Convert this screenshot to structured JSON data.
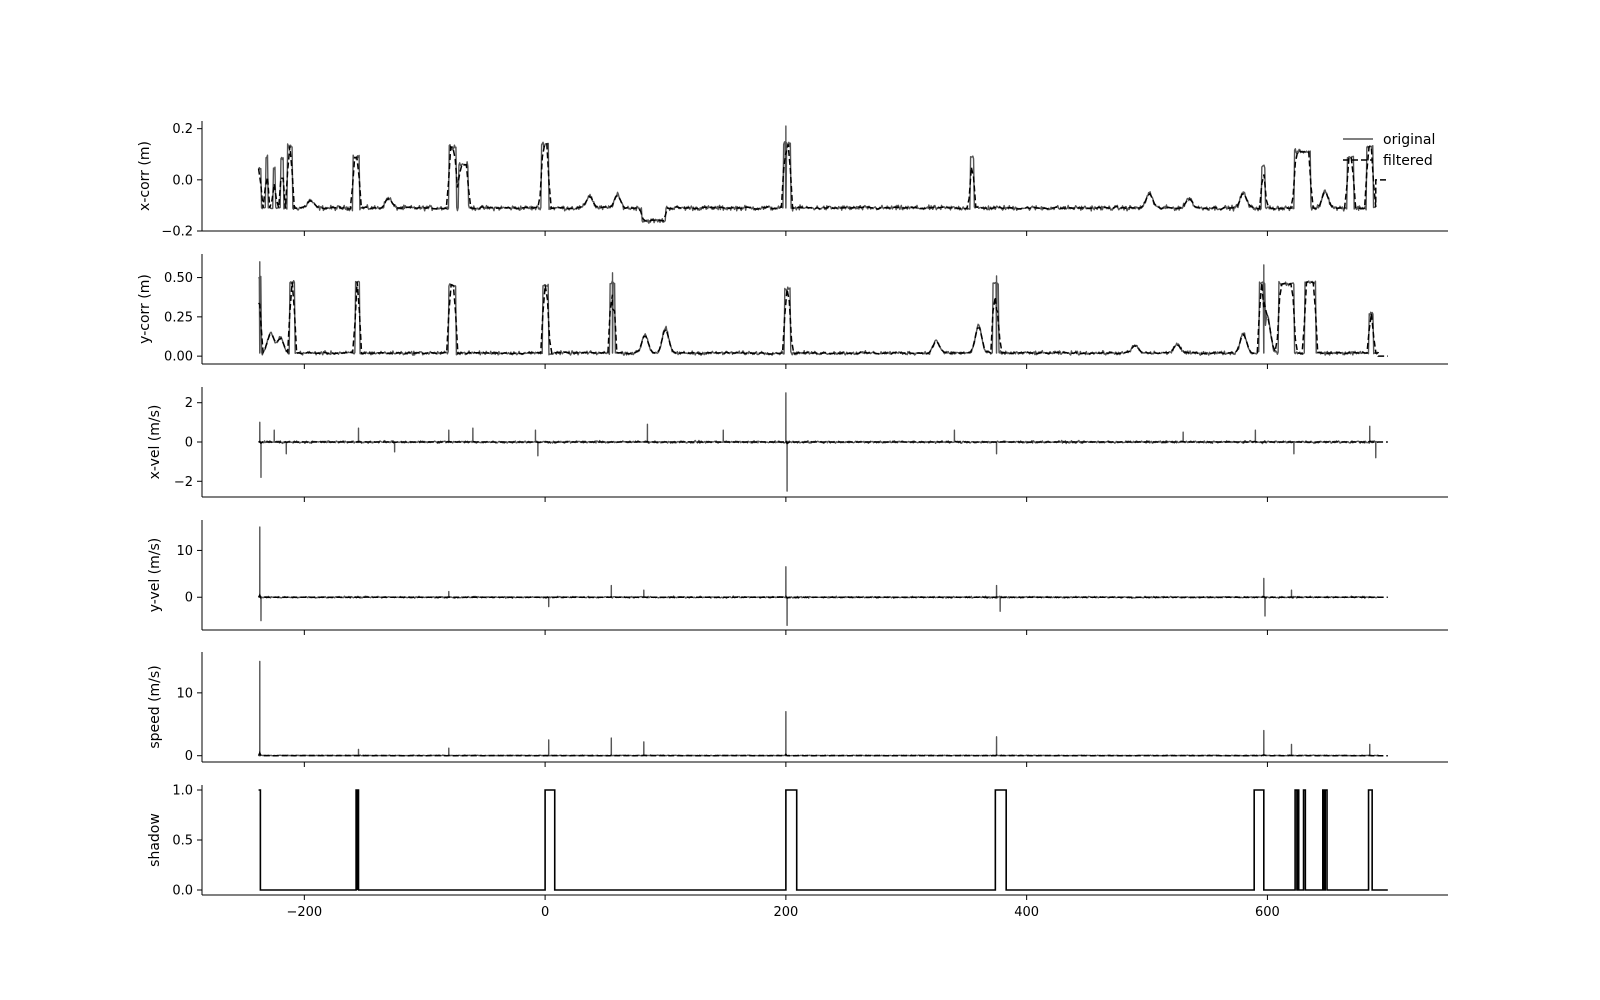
{
  "chart_data": {
    "type": "line",
    "layout": "stacked-subplots",
    "shared_x": true,
    "x_ticks": [
      -200,
      0,
      200,
      400,
      600
    ],
    "xlim": [
      -285,
      750
    ],
    "legend": {
      "placement": "top-right",
      "entries": [
        {
          "name": "original",
          "style": "solid",
          "color": "#555555"
        },
        {
          "name": "filtered",
          "style": "dashed",
          "color": "#000000"
        }
      ]
    },
    "x_range_data": [
      -238,
      700
    ],
    "panels": [
      {
        "ylabel": "x-corr (m)",
        "ylim": [
          -0.2,
          0.23
        ],
        "y_ticks": [
          -0.2,
          0.0,
          0.2
        ],
        "y_tick_labels": [
          "−0.2",
          "0.0",
          "0.2"
        ],
        "baseline": -0.11,
        "noise": 0.008,
        "tail": {
          "from": 690,
          "value": 0.0
        },
        "features": [
          {
            "x0": -238,
            "x1": -236,
            "v": 0.04
          },
          {
            "x0": -232,
            "x1": -230,
            "v": 0.09
          },
          {
            "x0": -226,
            "x1": -224,
            "v": 0.05
          },
          {
            "x0": -220,
            "x1": -217,
            "v": 0.08
          },
          {
            "x0": -214,
            "x1": -210,
            "v": 0.13
          },
          {
            "x0": -160,
            "x1": -154,
            "v": 0.09
          },
          {
            "x0": -80,
            "x1": -74,
            "v": 0.13
          },
          {
            "x0": -72,
            "x1": -64,
            "v": 0.06
          },
          {
            "x0": -3,
            "x1": 3,
            "v": 0.14
          },
          {
            "x0": 80,
            "x1": 100,
            "v": -0.16
          },
          {
            "x0": 198,
            "x1": 204,
            "v": 0.14
          },
          {
            "x0": 353,
            "x1": 356,
            "v": 0.09
          },
          {
            "x0": 595,
            "x1": 598,
            "v": 0.05
          },
          {
            "x0": 622,
            "x1": 636,
            "v": 0.11
          },
          {
            "x0": 666,
            "x1": 672,
            "v": 0.09
          },
          {
            "x0": 682,
            "x1": 688,
            "v": 0.13
          }
        ],
        "spikes": [
          {
            "x": 200,
            "v": 0.21
          }
        ],
        "bumps": [
          {
            "x": -195,
            "v": -0.08
          },
          {
            "x": -130,
            "v": -0.07
          },
          {
            "x": 37,
            "v": -0.06
          },
          {
            "x": 60,
            "v": -0.06
          },
          {
            "x": 502,
            "v": -0.05
          },
          {
            "x": 535,
            "v": -0.07
          },
          {
            "x": 580,
            "v": -0.05
          },
          {
            "x": 648,
            "v": -0.04
          }
        ]
      },
      {
        "ylabel": "y-corr (m)",
        "ylim": [
          -0.05,
          0.65
        ],
        "y_ticks": [
          0.0,
          0.25,
          0.5
        ],
        "y_tick_labels": [
          "0.00",
          "0.25",
          "0.50"
        ],
        "baseline": 0.02,
        "noise": 0.01,
        "tail": {
          "from": 692,
          "value": 0.0
        },
        "features": [
          {
            "x0": -238,
            "x1": -236,
            "v": 0.5
          },
          {
            "x0": -212,
            "x1": -208,
            "v": 0.47
          },
          {
            "x0": -158,
            "x1": -154,
            "v": 0.47
          },
          {
            "x0": -80,
            "x1": -74,
            "v": 0.45
          },
          {
            "x0": -2,
            "x1": 3,
            "v": 0.45
          },
          {
            "x0": 54,
            "x1": 58,
            "v": 0.47
          },
          {
            "x0": 199,
            "x1": 204,
            "v": 0.43
          },
          {
            "x0": 372,
            "x1": 377,
            "v": 0.46
          },
          {
            "x0": 593,
            "x1": 598,
            "v": 0.47
          },
          {
            "x0": 609,
            "x1": 622,
            "v": 0.46
          },
          {
            "x0": 631,
            "x1": 640,
            "v": 0.47
          },
          {
            "x0": 684,
            "x1": 688,
            "v": 0.27
          }
        ],
        "spikes": [
          {
            "x": -237,
            "v": 0.6
          },
          {
            "x": 56,
            "v": 0.53
          },
          {
            "x": 375,
            "v": 0.51
          },
          {
            "x": 597,
            "v": 0.58
          }
        ],
        "bumps": [
          {
            "x": -228,
            "v": 0.15
          },
          {
            "x": -220,
            "v": 0.12
          },
          {
            "x": 83,
            "v": 0.14
          },
          {
            "x": 100,
            "v": 0.18
          },
          {
            "x": 325,
            "v": 0.1
          },
          {
            "x": 360,
            "v": 0.2
          },
          {
            "x": 490,
            "v": 0.07
          },
          {
            "x": 525,
            "v": 0.08
          },
          {
            "x": 580,
            "v": 0.15
          },
          {
            "x": 600,
            "v": 0.25
          }
        ]
      },
      {
        "ylabel": "x-vel (m/s)",
        "ylim": [
          -2.8,
          2.8
        ],
        "y_ticks": [
          -2,
          0,
          2
        ],
        "y_tick_labels": [
          "−2",
          "0",
          "2"
        ],
        "baseline": 0.0,
        "noise": 0.05,
        "tail": {
          "from": 692,
          "value": 0.0
        },
        "features": [],
        "spikes": [
          {
            "x": -237,
            "v": 1.0
          },
          {
            "x": -236,
            "v": -1.8
          },
          {
            "x": -225,
            "v": 0.6
          },
          {
            "x": -215,
            "v": -0.6
          },
          {
            "x": -155,
            "v": 0.7
          },
          {
            "x": -125,
            "v": -0.5
          },
          {
            "x": -80,
            "v": 0.6
          },
          {
            "x": -60,
            "v": 0.7
          },
          {
            "x": -8,
            "v": 0.6
          },
          {
            "x": -6,
            "v": -0.7
          },
          {
            "x": 85,
            "v": 0.9
          },
          {
            "x": 148,
            "v": 0.6
          },
          {
            "x": 200,
            "v": 2.5
          },
          {
            "x": 201,
            "v": -2.5
          },
          {
            "x": 340,
            "v": 0.6
          },
          {
            "x": 375,
            "v": -0.6
          },
          {
            "x": 530,
            "v": 0.5
          },
          {
            "x": 590,
            "v": 0.6
          },
          {
            "x": 622,
            "v": -0.6
          },
          {
            "x": 685,
            "v": 0.8
          },
          {
            "x": 690,
            "v": -0.8
          }
        ],
        "bumps": []
      },
      {
        "ylabel": "y-vel (m/s)",
        "ylim": [
          -7,
          16.5
        ],
        "y_ticks": [
          0,
          10
        ],
        "y_tick_labels": [
          "0",
          "10"
        ],
        "baseline": 0.0,
        "noise": 0.15,
        "tail": {
          "from": 692,
          "value": 0.0
        },
        "features": [],
        "spikes": [
          {
            "x": -237,
            "v": 15.0
          },
          {
            "x": -236,
            "v": -5.0
          },
          {
            "x": -80,
            "v": 1.2
          },
          {
            "x": 3,
            "v": -2.0
          },
          {
            "x": 55,
            "v": 2.5
          },
          {
            "x": 82,
            "v": 1.5
          },
          {
            "x": 200,
            "v": 6.5
          },
          {
            "x": 201,
            "v": -6.0
          },
          {
            "x": 375,
            "v": 2.5
          },
          {
            "x": 378,
            "v": -3.0
          },
          {
            "x": 597,
            "v": 4.0
          },
          {
            "x": 598,
            "v": -4.0
          },
          {
            "x": 620,
            "v": 1.5
          }
        ],
        "bumps": []
      },
      {
        "ylabel": "speed (m/s)",
        "ylim": [
          -1,
          16.5
        ],
        "y_ticks": [
          0,
          10
        ],
        "y_tick_labels": [
          "0",
          "10"
        ],
        "baseline": 0.0,
        "noise": 0.08,
        "nonnegative": true,
        "tail": {
          "from": 692,
          "value": 0.0
        },
        "features": [],
        "spikes": [
          {
            "x": -237,
            "v": 15.0
          },
          {
            "x": -155,
            "v": 1.0
          },
          {
            "x": -80,
            "v": 1.2
          },
          {
            "x": 3,
            "v": 2.5
          },
          {
            "x": 55,
            "v": 2.8
          },
          {
            "x": 82,
            "v": 2.2
          },
          {
            "x": 200,
            "v": 7.0
          },
          {
            "x": 375,
            "v": 3.0
          },
          {
            "x": 597,
            "v": 4.0
          },
          {
            "x": 620,
            "v": 1.8
          },
          {
            "x": 685,
            "v": 1.8
          }
        ],
        "bumps": []
      },
      {
        "ylabel": "shadow",
        "ylim": [
          -0.05,
          1.05
        ],
        "y_ticks": [
          0.0,
          0.5,
          1.0
        ],
        "y_tick_labels": [
          "0.0",
          "0.5",
          "1.0"
        ],
        "step": true,
        "intervals": [
          [
            -238,
            -236.5
          ],
          [
            -157,
            -156
          ],
          [
            -156,
            -155
          ],
          [
            0,
            8
          ],
          [
            200,
            209
          ],
          [
            374,
            383
          ],
          [
            589,
            597
          ],
          [
            623,
            624.5
          ],
          [
            625,
            626
          ],
          [
            630,
            631.5
          ],
          [
            646,
            647
          ],
          [
            648,
            649.5
          ],
          [
            684,
            687
          ]
        ],
        "x_end": 700
      }
    ]
  }
}
